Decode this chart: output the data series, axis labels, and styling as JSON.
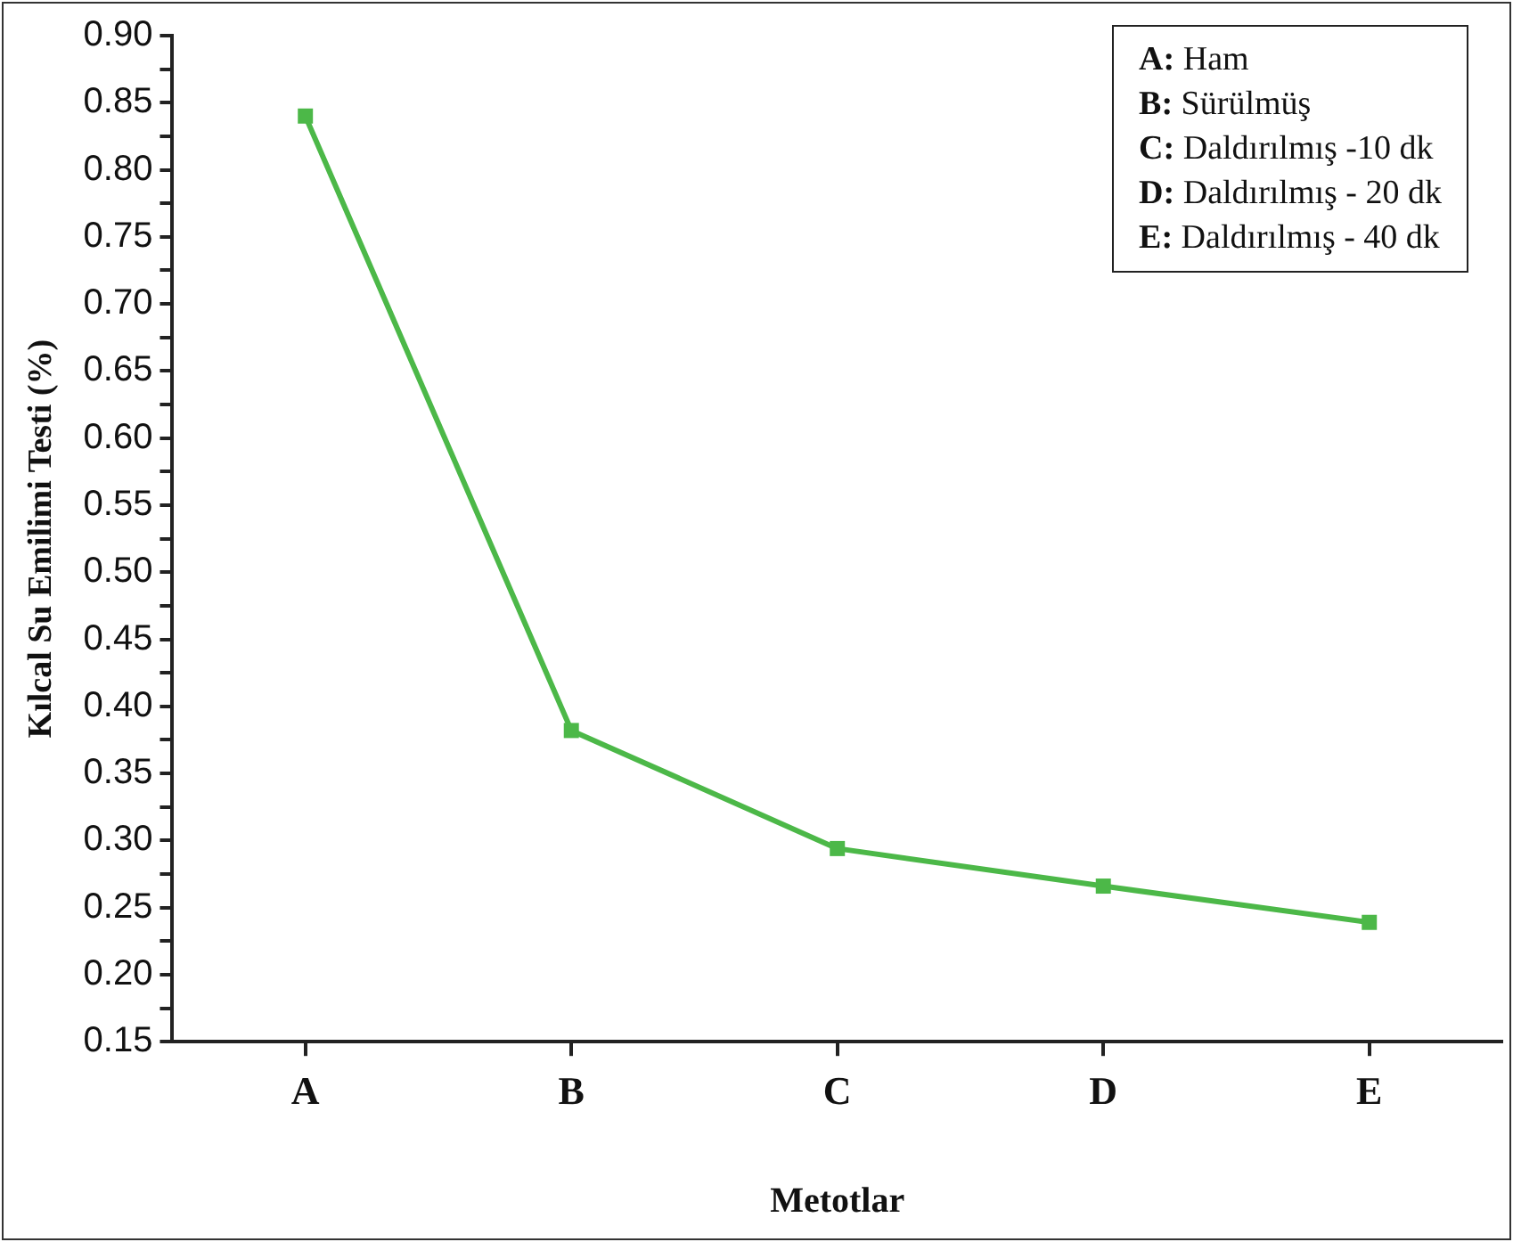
{
  "chart_data": {
    "type": "line",
    "xlabel": "Metotlar",
    "ylabel": "Kılcal Su Emilimi Testi (%)",
    "categories": [
      "A",
      "B",
      "C",
      "D",
      "E"
    ],
    "series": [
      {
        "color": "#4cb848",
        "values": [
          0.84,
          0.382,
          0.294,
          0.266,
          0.239
        ]
      }
    ],
    "ylim": [
      0.15,
      0.9
    ],
    "yticks": [
      0.15,
      {
        "value": 0.175,
        "label": null
      },
      {
        "value": 0.2,
        "label": "0.20"
      },
      {
        "value": 0.225,
        "label": null
      },
      0.25,
      {
        "value": 0.275,
        "label": null
      },
      {
        "value": 0.3,
        "label": "0.30"
      },
      {
        "value": 0.325,
        "label": null
      },
      0.35,
      {
        "value": 0.375,
        "label": null
      },
      {
        "value": 0.4,
        "label": "0.40"
      },
      {
        "value": 0.425,
        "label": null
      },
      0.45,
      {
        "value": 0.475,
        "label": null
      },
      {
        "value": 0.5,
        "label": "0.50"
      },
      {
        "value": 0.525,
        "label": null
      },
      0.55,
      {
        "value": 0.575,
        "label": null
      },
      {
        "value": 0.6,
        "label": "0.60"
      },
      {
        "value": 0.625,
        "label": null
      },
      0.65,
      {
        "value": 0.675,
        "label": null
      },
      {
        "value": 0.7,
        "label": "0.70"
      },
      {
        "value": 0.725,
        "label": null
      },
      0.75,
      {
        "value": 0.775,
        "label": null
      },
      {
        "value": 0.8,
        "label": "0.80"
      },
      {
        "value": 0.825,
        "label": null
      },
      0.85,
      {
        "value": 0.875,
        "label": null
      },
      {
        "value": 0.9,
        "label": "0.90"
      }
    ],
    "annotations": [
      "A: Ham",
      "B: Sürülmüş",
      "C: Daldırılmış -10 dk",
      "D: Daldırılmış - 20 dk",
      "E: Daldırılmış - 40 dk"
    ],
    "grid": false,
    "legend": false,
    "marker": "square",
    "line_style": "solid"
  }
}
